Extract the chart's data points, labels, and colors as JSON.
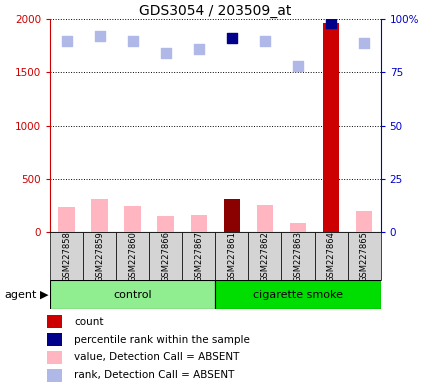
{
  "title": "GDS3054 / 203509_at",
  "samples": [
    "GSM227858",
    "GSM227859",
    "GSM227860",
    "GSM227866",
    "GSM227867",
    "GSM227861",
    "GSM227862",
    "GSM227863",
    "GSM227864",
    "GSM227865"
  ],
  "bar_values": [
    240,
    310,
    245,
    150,
    165,
    310,
    260,
    85,
    1960,
    200
  ],
  "bar_colors": [
    "#ffb6c1",
    "#ffb6c1",
    "#ffb6c1",
    "#ffb6c1",
    "#ffb6c1",
    "#8b0000",
    "#ffb6c1",
    "#ffb6c1",
    "#cc0000",
    "#ffb6c1"
  ],
  "rank_values": [
    1800,
    1840,
    1800,
    1680,
    1720,
    1820,
    1800,
    1560,
    1960,
    1780
  ],
  "rank_colors": [
    "#b0b8e8",
    "#b0b8e8",
    "#b0b8e8",
    "#b0b8e8",
    "#b0b8e8",
    "#00008b",
    "#b0b8e8",
    "#b0b8e8",
    "#00008b",
    "#b0b8e8"
  ],
  "ylim_left": [
    0,
    2000
  ],
  "ylim_right": [
    0,
    100
  ],
  "yticks_left": [
    0,
    500,
    1000,
    1500,
    2000
  ],
  "yticks_right": [
    0,
    25,
    50,
    75,
    100
  ],
  "ytick_labels_left": [
    "0",
    "500",
    "1000",
    "1500",
    "2000"
  ],
  "ytick_labels_right": [
    "0",
    "25",
    "50",
    "75",
    "100%"
  ],
  "left_axis_color": "#cc0000",
  "right_axis_color": "#0000cc",
  "grid_color": "black",
  "plot_bg": "white",
  "bar_width": 0.5,
  "marker_size": 45,
  "control_color": "#90ee90",
  "smoke_color": "#00dd00",
  "legend_items": [
    {
      "color": "#cc0000",
      "label": "count"
    },
    {
      "color": "#00008b",
      "label": "percentile rank within the sample"
    },
    {
      "color": "#ffb6c1",
      "label": "value, Detection Call = ABSENT"
    },
    {
      "color": "#b0b8e8",
      "label": "rank, Detection Call = ABSENT"
    }
  ],
  "agent_label": "agent",
  "title_fontsize": 10,
  "tick_fontsize": 7.5,
  "label_fontsize": 8,
  "legend_fontsize": 7.5,
  "sample_fontsize": 6,
  "group_fontsize": 8
}
